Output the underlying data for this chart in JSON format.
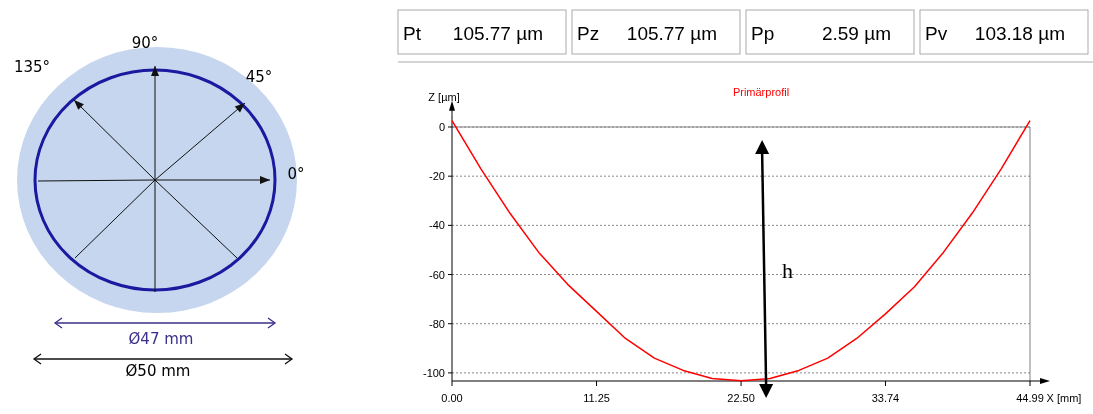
{
  "chart_data": {
    "type": "line",
    "title": "Primärprofil",
    "xlabel": "X [mm]",
    "ylabel": "Z [µm]",
    "x": [
      0,
      2.25,
      4.5,
      6.75,
      9,
      11.25,
      13.5,
      15.75,
      18,
      20.25,
      22.5,
      24.75,
      27,
      29.25,
      31.5,
      33.74,
      36,
      38.25,
      40.5,
      42.75,
      44.99
    ],
    "series": [
      {
        "color": "#ff0000",
        "values": [
          2.6,
          -17,
          -35,
          -51,
          -64,
          -75,
          -86,
          -94,
          -99,
          -102.3,
          -103.2,
          -102.3,
          -99,
          -94,
          -86,
          -76,
          -65,
          -51,
          -35,
          -17,
          2.6
        ]
      }
    ],
    "xlim": [
      0,
      44.99
    ],
    "ylim": [
      -103.3,
      5
    ],
    "xticks": [
      {
        "value": 0,
        "label": "0.00"
      },
      {
        "value": 11.25,
        "label": "11.25"
      },
      {
        "value": 22.5,
        "label": "22.50"
      },
      {
        "value": 33.74,
        "label": "33.74"
      },
      {
        "value": 44.99,
        "label": "44.99"
      }
    ],
    "yticks": [
      0,
      -20,
      -40,
      -60,
      -80,
      -100
    ],
    "grid": "y",
    "line_style": "solid",
    "marker": "none",
    "ref_lines": [
      {
        "axis": "y",
        "value": 0,
        "color": "#808080",
        "line_style": "solid"
      }
    ],
    "annotations": [
      "Pt",
      "105.77 µm",
      "Pz",
      "105.77 µm",
      "Pp",
      "2.59 µm",
      "Pv",
      "103.18 µm",
      "90°",
      "135°",
      "45°",
      "0°",
      "Ø47 mm",
      "Ø50 mm",
      "h"
    ]
  }
}
